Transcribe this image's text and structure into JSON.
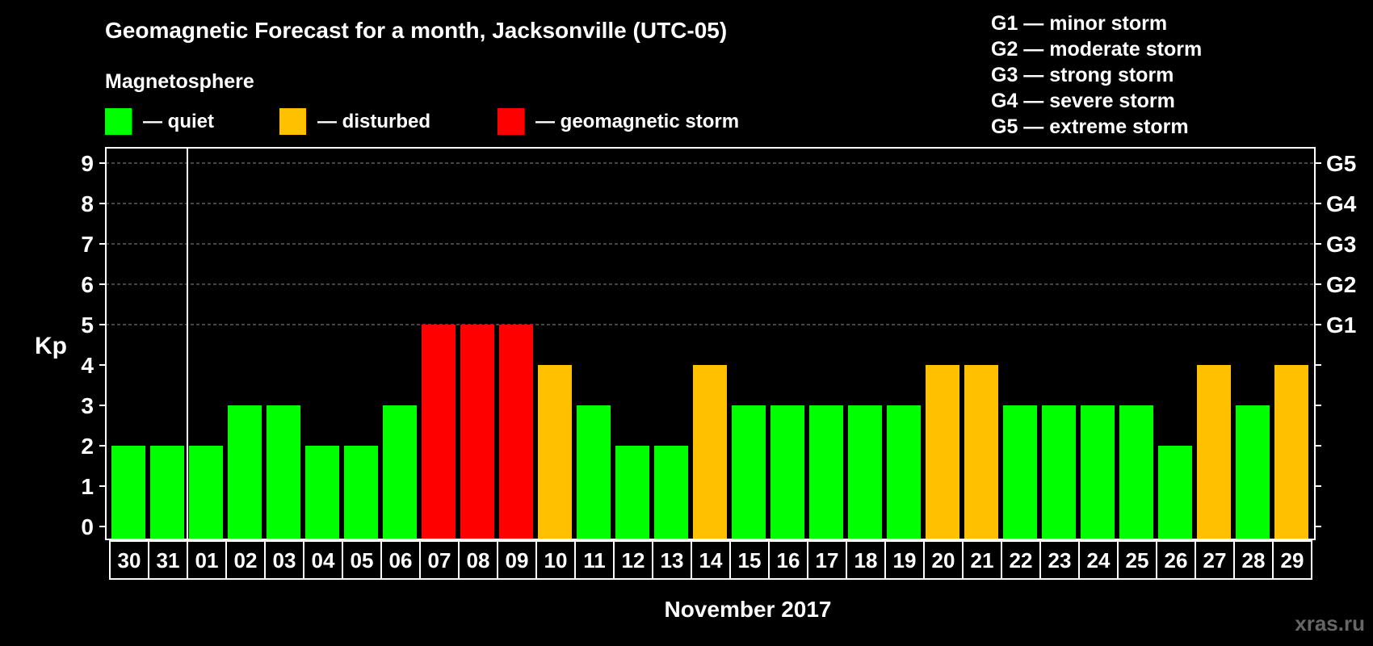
{
  "chart_data": {
    "type": "bar",
    "title": "Geomagnetic Forecast for a month, Jacksonville (UTC-05)",
    "legend_heading": "Magnetosphere",
    "legend": [
      {
        "label": "— quiet",
        "color": "#00ff00"
      },
      {
        "label": "— disturbed",
        "color": "#ffc000"
      },
      {
        "label": "— geomagnetic storm",
        "color": "#ff0000"
      }
    ],
    "storm_scale": [
      "G1 — minor storm",
      "G2 — moderate storm",
      "G3 — strong storm",
      "G4 — severe storm",
      "G5 — extreme storm"
    ],
    "ylabel": "Kp",
    "xlabel": "November 2017",
    "ylim": [
      0,
      9
    ],
    "yticks": [
      "0",
      "1",
      "2",
      "3",
      "4",
      "5",
      "6",
      "7",
      "8",
      "9"
    ],
    "right_axis_labels": [
      {
        "kp": 5,
        "label": "G1"
      },
      {
        "kp": 6,
        "label": "G2"
      },
      {
        "kp": 7,
        "label": "G3"
      },
      {
        "kp": 8,
        "label": "G4"
      },
      {
        "kp": 9,
        "label": "G5"
      }
    ],
    "categories": [
      "30",
      "31",
      "01",
      "02",
      "03",
      "04",
      "05",
      "06",
      "07",
      "08",
      "09",
      "10",
      "11",
      "12",
      "13",
      "14",
      "15",
      "16",
      "17",
      "18",
      "19",
      "20",
      "21",
      "22",
      "23",
      "24",
      "25",
      "26",
      "27",
      "28",
      "29"
    ],
    "values": [
      2,
      2,
      2,
      3,
      3,
      2,
      2,
      3,
      5,
      5,
      5,
      4,
      3,
      2,
      2,
      4,
      3,
      3,
      3,
      3,
      3,
      4,
      4,
      3,
      3,
      3,
      3,
      2,
      4,
      3,
      4
    ],
    "colors": {
      "quiet": "#00ff00",
      "disturbed": "#ffc000",
      "storm": "#ff0000"
    },
    "watermark": "xras.ru"
  }
}
